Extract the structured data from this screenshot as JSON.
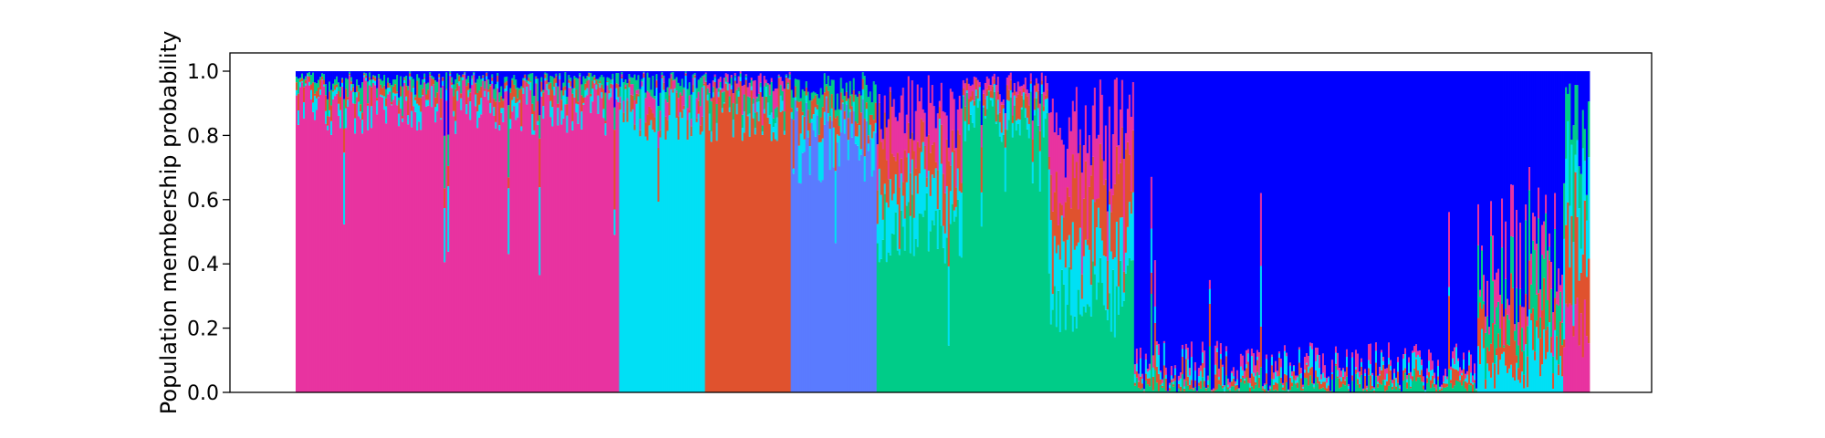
{
  "chart_data": {
    "type": "bar",
    "subtype": "stacked-100-percent",
    "title": "",
    "xlabel": "",
    "ylabel": "Population membership probability",
    "ylim": [
      0,
      1.0
    ],
    "yticks": [
      "0.0",
      "0.2",
      "0.4",
      "0.6",
      "0.8",
      "1.0"
    ],
    "x_tick_labels_shown": false,
    "legend": "none",
    "grid": false,
    "colors": {
      "blue": "#0000ff",
      "pink": "#e833a0",
      "cyan": "#00e0f5",
      "orange": "#e0522e",
      "periwinkle": "#5a7bff",
      "green": "#00cc88"
    },
    "groups": [
      {
        "dominant": "pink",
        "share": 0.245,
        "main": [
          0.8,
          0.99
        ],
        "sub": [
          "cyan",
          "orange",
          "green",
          "blue"
        ]
      },
      {
        "dominant": "cyan",
        "share": 0.065,
        "main": [
          0.78,
          0.99
        ],
        "sub": [
          "orange",
          "pink",
          "green",
          "blue"
        ]
      },
      {
        "dominant": "orange",
        "share": 0.065,
        "main": [
          0.78,
          0.99
        ],
        "sub": [
          "cyan",
          "green",
          "pink",
          "blue"
        ]
      },
      {
        "dominant": "periwinkle",
        "share": 0.065,
        "main": [
          0.65,
          0.92
        ],
        "sub": [
          "cyan",
          "orange",
          "green",
          "blue"
        ]
      },
      {
        "dominant": "green",
        "share": 0.065,
        "main": [
          0.4,
          0.62
        ],
        "sub": [
          "cyan",
          "orange",
          "pink",
          "blue"
        ]
      },
      {
        "dominant": "green",
        "share": 0.065,
        "main": [
          0.78,
          0.94
        ],
        "sub": [
          "cyan",
          "orange",
          "pink",
          "blue"
        ]
      },
      {
        "dominant": "green",
        "share": 0.065,
        "main": [
          0.18,
          0.42
        ],
        "sub": [
          "cyan",
          "orange",
          "pink",
          "blue"
        ]
      },
      {
        "dominant": "blue",
        "share": 0.26,
        "main": [
          0.84,
          1.0
        ],
        "sub": [
          "green",
          "orange",
          "cyan",
          "pink"
        ]
      },
      {
        "dominant": "blue",
        "share": 0.065,
        "main": [
          0.35,
          0.8
        ],
        "sub": [
          "cyan",
          "orange",
          "green",
          "pink"
        ]
      },
      {
        "dominant": "pink",
        "share": 0.02,
        "main": [
          0.1,
          0.3
        ],
        "sub": [
          "orange",
          "cyan",
          "green",
          "blue"
        ]
      }
    ]
  }
}
